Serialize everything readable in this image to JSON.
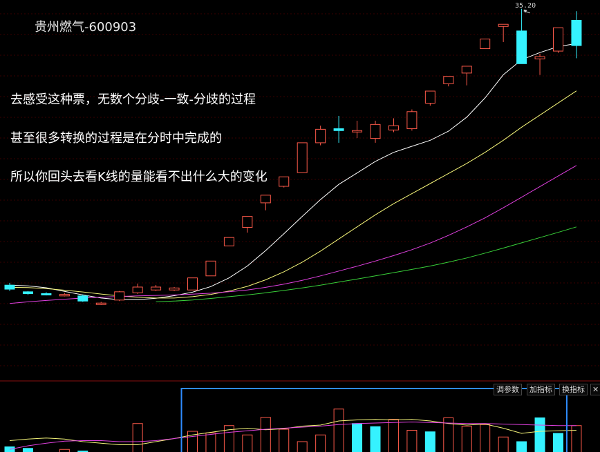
{
  "stock_title": "贵州燃气-600903",
  "annotations": [
    "去感受这种票，无数个分歧-一致-分歧的过程",
    "甚至很多转换的过程是在分时中完成的",
    "所以你回头去看K线的量能看不出什么大的变化"
  ],
  "peak_label": "35.20",
  "toolbar": {
    "params_label": "调参数",
    "add_indicator_label": "加指标",
    "switch_indicator_label": "换指标",
    "close_label": "✕"
  },
  "colors": {
    "up": "#ff5a4a",
    "down": "#35f2ff",
    "ma5": "#ffffff",
    "ma10": "#f6f67a",
    "ma20": "#e040e0",
    "ma60": "#39d039",
    "highlight_box": "#2e8cff"
  },
  "chart_data": {
    "type": "candlestick",
    "title": "贵州燃气-600903",
    "peak_price": 35.2,
    "candles": [
      {
        "open": 14.52,
        "close": 14.12,
        "high": 14.75,
        "low": 13.94,
        "dir": "down"
      },
      {
        "open": 13.86,
        "close": 13.68,
        "high": 13.94,
        "low": 13.55,
        "dir": "down"
      },
      {
        "open": 13.68,
        "close": 13.55,
        "high": 13.82,
        "low": 13.5,
        "dir": "down"
      },
      {
        "open": 13.45,
        "close": 13.6,
        "high": 13.75,
        "low": 13.4,
        "dir": "up"
      },
      {
        "open": 13.45,
        "close": 12.94,
        "high": 13.6,
        "low": 12.86,
        "dir": "down"
      },
      {
        "open": 12.6,
        "close": 12.74,
        "high": 12.86,
        "low": 12.55,
        "dir": "up"
      },
      {
        "open": 13.04,
        "close": 13.86,
        "high": 13.94,
        "low": 12.94,
        "dir": "up"
      },
      {
        "open": 13.76,
        "close": 14.33,
        "high": 14.68,
        "low": 13.65,
        "dir": "up"
      },
      {
        "open": 14.04,
        "close": 14.33,
        "high": 14.54,
        "low": 13.94,
        "dir": "up"
      },
      {
        "open": 14.04,
        "close": 14.24,
        "high": 14.33,
        "low": 13.94,
        "dir": "up"
      },
      {
        "open": 14.04,
        "close": 15.24,
        "high": 15.24,
        "low": 14.04,
        "dir": "up"
      },
      {
        "open": 15.44,
        "close": 16.91,
        "high": 16.91,
        "low": 15.44,
        "dir": "up"
      },
      {
        "open": 18.42,
        "close": 19.25,
        "high": 19.25,
        "low": 18.42,
        "dir": "up"
      },
      {
        "open": 20.25,
        "close": 21.34,
        "high": 21.34,
        "low": 19.73,
        "dir": "up"
      },
      {
        "open": 22.69,
        "close": 23.45,
        "high": 23.45,
        "low": 21.95,
        "dir": "up"
      },
      {
        "open": 24.33,
        "close": 25.27,
        "high": 25.27,
        "low": 24.21,
        "dir": "up"
      },
      {
        "open": 25.69,
        "close": 28.65,
        "high": 28.65,
        "low": 25.69,
        "dir": "up"
      },
      {
        "open": 28.65,
        "close": 29.99,
        "high": 30.35,
        "low": 28.4,
        "dir": "up"
      },
      {
        "open": 30.05,
        "close": 29.86,
        "high": 31.32,
        "low": 28.65,
        "dir": "down"
      },
      {
        "open": 29.86,
        "close": 29.8,
        "high": 30.84,
        "low": 29.12,
        "dir": "up"
      },
      {
        "open": 29.08,
        "close": 30.47,
        "high": 30.84,
        "low": 28.65,
        "dir": "up"
      },
      {
        "open": 29.92,
        "close": 30.35,
        "high": 31.08,
        "low": 29.7,
        "dir": "up"
      },
      {
        "open": 30.05,
        "close": 31.74,
        "high": 31.96,
        "low": 29.86,
        "dir": "up"
      },
      {
        "open": 32.58,
        "close": 33.78,
        "high": 33.78,
        "low": 32.34,
        "dir": "up"
      },
      {
        "open": 34.5,
        "close": 35.24,
        "high": 35.24,
        "low": 34.25,
        "dir": "up"
      },
      {
        "open": 35.57,
        "close": 36.25,
        "high": 36.25,
        "low": 34.35,
        "dir": "up"
      },
      {
        "open": 37.99,
        "close": 38.95,
        "high": 38.95,
        "low": 37.99,
        "dir": "up"
      },
      {
        "open": 40.2,
        "close": 40.41,
        "high": 40.41,
        "low": 38.65,
        "dir": "up"
      },
      {
        "open": 39.75,
        "close": 36.5,
        "high": 41.95,
        "low": 36.5,
        "dir": "down"
      },
      {
        "open": 36.98,
        "close": 37.2,
        "high": 37.5,
        "low": 35.38,
        "dir": "up"
      },
      {
        "open": 37.75,
        "close": 40.07,
        "high": 40.07,
        "low": 37.57,
        "dir": "up"
      },
      {
        "open": 40.8,
        "close": 38.3,
        "high": 41.71,
        "low": 37.04,
        "dir": "down"
      }
    ],
    "ma_lines": [
      {
        "key": "ma5",
        "points": [
          [
            0,
            14.52
          ],
          [
            1,
            14.45
          ],
          [
            2,
            14.26
          ],
          [
            3,
            13.9
          ],
          [
            4,
            13.55
          ],
          [
            5,
            13.24
          ],
          [
            6,
            13.08
          ],
          [
            7,
            13.08
          ],
          [
            8,
            13.22
          ],
          [
            9,
            13.47
          ],
          [
            10,
            13.82
          ],
          [
            11,
            14.38
          ],
          [
            12,
            15.24
          ],
          [
            13,
            16.42
          ],
          [
            14,
            17.95
          ],
          [
            15,
            19.63
          ],
          [
            16,
            21.34
          ],
          [
            17,
            23.01
          ],
          [
            18,
            24.52
          ],
          [
            19,
            25.65
          ],
          [
            20,
            26.8
          ],
          [
            21,
            27.7
          ],
          [
            22,
            28.3
          ],
          [
            23,
            28.9
          ],
          [
            24,
            29.8
          ],
          [
            25,
            31.2
          ],
          [
            26,
            33.1
          ],
          [
            27,
            35.4
          ],
          [
            28,
            36.9
          ],
          [
            29,
            37.6
          ],
          [
            30,
            38.2
          ],
          [
            31,
            38.5
          ]
        ]
      },
      {
        "key": "ma10",
        "points": [
          [
            0,
            14.3
          ],
          [
            1,
            14.28
          ],
          [
            2,
            14.18
          ],
          [
            3,
            14.02
          ],
          [
            4,
            13.84
          ],
          [
            5,
            13.64
          ],
          [
            6,
            13.45
          ],
          [
            7,
            13.32
          ],
          [
            8,
            13.24
          ],
          [
            9,
            13.24
          ],
          [
            10,
            13.38
          ],
          [
            11,
            13.6
          ],
          [
            12,
            13.93
          ],
          [
            13,
            14.4
          ],
          [
            14,
            15.05
          ],
          [
            15,
            15.85
          ],
          [
            16,
            16.8
          ],
          [
            17,
            17.9
          ],
          [
            18,
            19.1
          ],
          [
            19,
            20.3
          ],
          [
            20,
            21.5
          ],
          [
            21,
            22.6
          ],
          [
            22,
            23.6
          ],
          [
            23,
            24.6
          ],
          [
            24,
            25.6
          ],
          [
            25,
            26.6
          ],
          [
            26,
            27.7
          ],
          [
            27,
            28.9
          ],
          [
            28,
            30.2
          ],
          [
            29,
            31.4
          ],
          [
            30,
            32.6
          ],
          [
            31,
            33.8
          ]
        ]
      },
      {
        "key": "ma20",
        "points": [
          [
            0,
            12.7
          ],
          [
            1,
            12.86
          ],
          [
            2,
            13.0
          ],
          [
            3,
            13.12
          ],
          [
            4,
            13.24
          ],
          [
            5,
            13.33
          ],
          [
            6,
            13.4
          ],
          [
            7,
            13.45
          ],
          [
            8,
            13.5
          ],
          [
            9,
            13.55
          ],
          [
            10,
            13.62
          ],
          [
            11,
            13.72
          ],
          [
            12,
            13.86
          ],
          [
            13,
            14.04
          ],
          [
            14,
            14.3
          ],
          [
            15,
            14.62
          ],
          [
            16,
            15.0
          ],
          [
            17,
            15.44
          ],
          [
            18,
            15.92
          ],
          [
            19,
            16.4
          ],
          [
            20,
            16.91
          ],
          [
            21,
            17.45
          ],
          [
            22,
            18.04
          ],
          [
            23,
            18.7
          ],
          [
            24,
            19.46
          ],
          [
            25,
            20.3
          ],
          [
            26,
            21.2
          ],
          [
            27,
            22.2
          ],
          [
            28,
            23.25
          ],
          [
            29,
            24.3
          ],
          [
            30,
            25.35
          ],
          [
            31,
            26.4
          ]
        ]
      },
      {
        "key": "ma60",
        "points": [
          [
            8,
            12.86
          ],
          [
            9,
            12.94
          ],
          [
            10,
            13.04
          ],
          [
            11,
            13.2
          ],
          [
            12,
            13.38
          ],
          [
            13,
            13.55
          ],
          [
            14,
            13.76
          ],
          [
            15,
            13.99
          ],
          [
            16,
            14.24
          ],
          [
            17,
            14.52
          ],
          [
            18,
            14.82
          ],
          [
            19,
            15.12
          ],
          [
            20,
            15.44
          ],
          [
            21,
            15.76
          ],
          [
            22,
            16.08
          ],
          [
            23,
            16.42
          ],
          [
            24,
            16.8
          ],
          [
            25,
            17.22
          ],
          [
            26,
            17.7
          ],
          [
            27,
            18.2
          ],
          [
            28,
            18.72
          ],
          [
            29,
            19.24
          ],
          [
            30,
            19.76
          ],
          [
            31,
            20.3
          ]
        ]
      }
    ],
    "volume": [
      {
        "value": 0.1,
        "dir": "down"
      },
      {
        "value": 0.07,
        "dir": "down"
      },
      {
        "value": 0.0,
        "dir": "up"
      },
      {
        "value": 0.05,
        "dir": "up"
      },
      {
        "value": 0.02,
        "dir": "down"
      },
      {
        "value": 0.0,
        "dir": "up"
      },
      {
        "value": 0.0,
        "dir": "up"
      },
      {
        "value": 0.55,
        "dir": "up"
      },
      {
        "value": 0.0,
        "dir": "up"
      },
      {
        "value": 0.0,
        "dir": "up"
      },
      {
        "value": 0.4,
        "dir": "up"
      },
      {
        "value": 0.37,
        "dir": "up"
      },
      {
        "value": 0.51,
        "dir": "up"
      },
      {
        "value": 0.33,
        "dir": "up"
      },
      {
        "value": 0.67,
        "dir": "up"
      },
      {
        "value": 0.44,
        "dir": "up"
      },
      {
        "value": 0.2,
        "dir": "up"
      },
      {
        "value": 0.33,
        "dir": "up"
      },
      {
        "value": 0.83,
        "dir": "up"
      },
      {
        "value": 0.55,
        "dir": "down"
      },
      {
        "value": 0.49,
        "dir": "down"
      },
      {
        "value": 0.63,
        "dir": "up"
      },
      {
        "value": 0.42,
        "dir": "up"
      },
      {
        "value": 0.39,
        "dir": "down"
      },
      {
        "value": 0.66,
        "dir": "up"
      },
      {
        "value": 0.5,
        "dir": "up"
      },
      {
        "value": 0.53,
        "dir": "up"
      },
      {
        "value": 0.29,
        "dir": "up"
      },
      {
        "value": 0.2,
        "dir": "down"
      },
      {
        "value": 0.66,
        "dir": "down"
      },
      {
        "value": 0.36,
        "dir": "down"
      },
      {
        "value": 0.51,
        "dir": "up"
      }
    ],
    "volume_ma": [
      {
        "key": "ma5",
        "points": [
          [
            0,
            0.22
          ],
          [
            1,
            0.25
          ],
          [
            2,
            0.27
          ],
          [
            3,
            0.25
          ],
          [
            4,
            0.2
          ],
          [
            5,
            0.17
          ],
          [
            6,
            0.14
          ],
          [
            7,
            0.14
          ],
          [
            8,
            0.2
          ],
          [
            9,
            0.26
          ],
          [
            10,
            0.33
          ],
          [
            11,
            0.38
          ],
          [
            12,
            0.43
          ],
          [
            13,
            0.46
          ],
          [
            14,
            0.43
          ],
          [
            15,
            0.45
          ],
          [
            16,
            0.5
          ],
          [
            17,
            0.52
          ],
          [
            18,
            0.6
          ],
          [
            19,
            0.62
          ],
          [
            20,
            0.63
          ],
          [
            21,
            0.62
          ],
          [
            22,
            0.63
          ],
          [
            23,
            0.6
          ],
          [
            24,
            0.55
          ],
          [
            25,
            0.52
          ],
          [
            26,
            0.54
          ],
          [
            27,
            0.46
          ],
          [
            28,
            0.36
          ],
          [
            29,
            0.4
          ],
          [
            30,
            0.41
          ],
          [
            31,
            0.42
          ]
        ]
      },
      {
        "key": "ma10",
        "points": [
          [
            0,
            0.05
          ],
          [
            1,
            0.12
          ],
          [
            2,
            0.17
          ],
          [
            3,
            0.21
          ],
          [
            4,
            0.22
          ],
          [
            5,
            0.22
          ],
          [
            6,
            0.2
          ],
          [
            7,
            0.2
          ],
          [
            8,
            0.22
          ],
          [
            9,
            0.26
          ],
          [
            10,
            0.3
          ],
          [
            11,
            0.34
          ],
          [
            12,
            0.38
          ],
          [
            13,
            0.41
          ],
          [
            14,
            0.44
          ],
          [
            15,
            0.46
          ],
          [
            16,
            0.48
          ],
          [
            17,
            0.5
          ],
          [
            18,
            0.53
          ],
          [
            19,
            0.55
          ],
          [
            20,
            0.56
          ],
          [
            21,
            0.57
          ],
          [
            22,
            0.58
          ],
          [
            23,
            0.57
          ],
          [
            24,
            0.56
          ],
          [
            25,
            0.55
          ],
          [
            26,
            0.55
          ],
          [
            27,
            0.54
          ],
          [
            28,
            0.53
          ],
          [
            29,
            0.52
          ],
          [
            30,
            0.51
          ],
          [
            31,
            0.51
          ]
        ]
      }
    ],
    "highlight_range": [
      10,
      31
    ]
  }
}
